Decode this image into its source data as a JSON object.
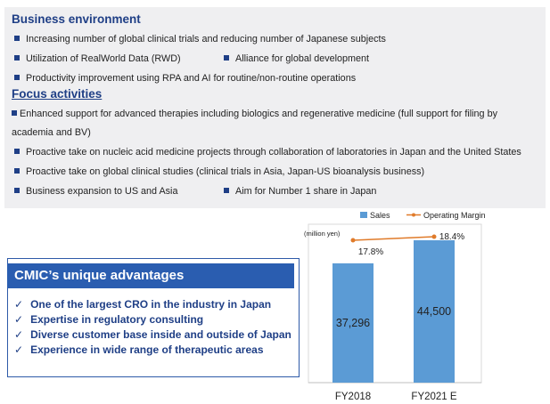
{
  "business_environment": {
    "heading": "Business environment",
    "items": [
      "Increasing number of global clinical trials and reducing number of Japanese subjects",
      "Utilization of RealWorld Data (RWD)",
      "Alliance for global development",
      "Productivity improvement using RPA and AI for routine/non-routine operations"
    ]
  },
  "focus_activities": {
    "heading": "Focus activities",
    "items": [
      "Enhanced support for advanced therapies including biologics and regenerative medicine (full support for filing by",
      "academia and BV)",
      "Proactive take on nucleic acid medicine projects through collaboration of laboratories in Japan and the United States",
      "Proactive take on global clinical studies   (clinical trials in Asia, Japan-US bioanalysis business)",
      "Business expansion to US and Asia",
      "Aim for Number 1 share in Japan"
    ]
  },
  "advantages": {
    "title": "CMIC’s unique advantages",
    "items": [
      "One of the largest CRO in the industry in Japan",
      "Expertise in regulatory consulting",
      "Diverse customer base inside and outside of Japan",
      "Experience in wide range of therapeutic areas"
    ]
  },
  "chart_data": {
    "type": "bar",
    "unit_label": "(million yen)",
    "categories": [
      "FY2018",
      "FY2021 E"
    ],
    "series": [
      {
        "name": "Sales",
        "type": "bar",
        "values": [
          37296,
          44500
        ],
        "labels": [
          "37,296",
          "44,500"
        ],
        "color": "#5b9bd5"
      },
      {
        "name": "Operating Margin",
        "type": "line",
        "values": [
          17.8,
          18.4
        ],
        "labels": [
          "17.8%",
          "18.4%"
        ],
        "color": "#e07b2a"
      }
    ],
    "legend": "top"
  }
}
